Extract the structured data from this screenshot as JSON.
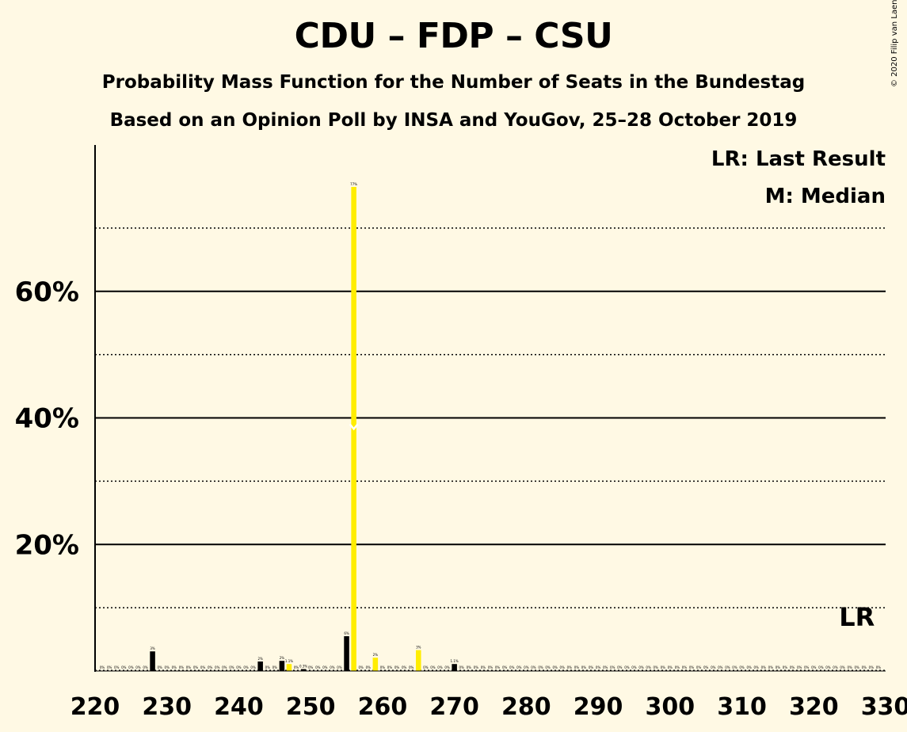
{
  "chart_data": {
    "type": "bar",
    "title": "CDU – FDP – CSU",
    "subtitle_1": "Probability Mass Function for the Number of Seats in the Bundestag",
    "subtitle_2": "Based on an Opinion Poll by INSA and YouGov, 25–28 October 2019",
    "copyright": "© 2020 Filip van Laenen",
    "legend": {
      "last_result": "LR: Last Result",
      "median": "M: Median",
      "placement": "top-right"
    },
    "lr_label": "LR",
    "last_result_seat": 326,
    "median_seat": 256,
    "xlim": [
      220,
      330
    ],
    "ylim": [
      0,
      0.8
    ],
    "yticks": [
      {
        "value": 0.2,
        "label": "20%"
      },
      {
        "value": 0.4,
        "label": "40%"
      },
      {
        "value": 0.6,
        "label": "60%"
      }
    ],
    "xticks": [
      220,
      230,
      240,
      250,
      260,
      270,
      280,
      290,
      300,
      310,
      320,
      330
    ],
    "bars": [
      {
        "seat": 228,
        "value": 0.031,
        "label": "3%",
        "color": "#000000"
      },
      {
        "seat": 243,
        "value": 0.015,
        "label": "2%",
        "color": "#000000"
      },
      {
        "seat": 246,
        "value": 0.016,
        "label": "2%",
        "color": "#000000"
      },
      {
        "seat": 247,
        "value": 0.011,
        "label": "1.1%",
        "color": "#FFED00"
      },
      {
        "seat": 249,
        "value": 0.003,
        "label": "0.3%",
        "color": "#000000"
      },
      {
        "seat": 255,
        "value": 0.055,
        "label": "6%",
        "color": "#000000"
      },
      {
        "seat": 256,
        "value": 0.765,
        "label": "77%",
        "color": "#FFED00"
      },
      {
        "seat": 259,
        "value": 0.021,
        "label": "2%",
        "color": "#FFED00"
      },
      {
        "seat": 265,
        "value": 0.033,
        "label": "3%",
        "color": "#FFED00"
      },
      {
        "seat": 270,
        "value": 0.011,
        "label": "1.1%",
        "color": "#000000"
      }
    ],
    "colors": {
      "background": "#FFF9E4",
      "primary": "#000000",
      "secondary": "#FFED00"
    }
  }
}
